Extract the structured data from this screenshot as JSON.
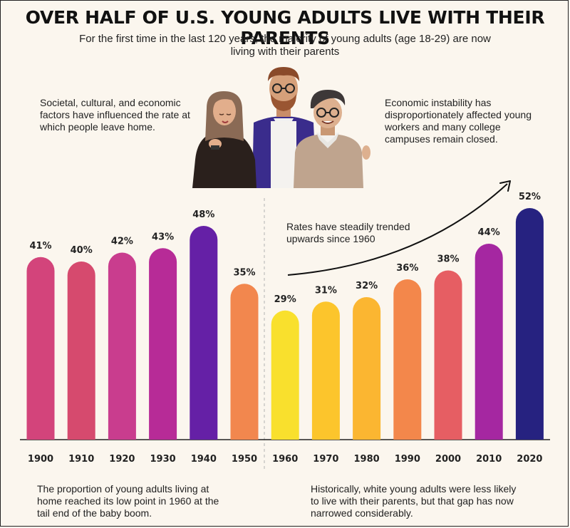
{
  "title": "OVER HALF OF U.S. YOUNG ADULTS LIVE WITH THEIR PARENTS",
  "subtitle": "For the first time in the last 120 years, the majority of young adults (age 18-29) are now living with their parents",
  "notes": {
    "top_left": "Societal, cultural, and economic factors have influenced the rate at which people leave home.",
    "top_right": "Economic instability has disproportionately affected young workers and many college campuses remain closed.",
    "trend": "Rates have steadily trended upwards since 1960",
    "bottom_left": "The proportion of young adults living at home reached its low point in 1960 at the tail end of the baby boom.",
    "bottom_right": "Historically, white young adults were less likely to live with their parents, but that gap has now narrowed considerably."
  },
  "chart_data": {
    "type": "bar",
    "categories": [
      "1900",
      "1910",
      "1920",
      "1930",
      "1940",
      "1950",
      "1960",
      "1970",
      "1980",
      "1990",
      "2000",
      "2010",
      "2020"
    ],
    "values": [
      41,
      40,
      42,
      43,
      48,
      35,
      29,
      31,
      32,
      36,
      38,
      44,
      52
    ],
    "value_labels": [
      "41%",
      "40%",
      "42%",
      "43%",
      "48%",
      "35%",
      "29%",
      "31%",
      "32%",
      "36%",
      "38%",
      "44%",
      "52%"
    ],
    "colors": [
      "#d3447b",
      "#d64a6e",
      "#c93d8e",
      "#b72b97",
      "#6520a6",
      "#f2874e",
      "#f9e02d",
      "#fcc52c",
      "#fbb631",
      "#f3874b",
      "#e65e63",
      "#a527a1",
      "#262280"
    ],
    "ylim": [
      0,
      52
    ],
    "grid": false,
    "legend": false
  },
  "illustration": {
    "icon": "family-illustration"
  }
}
